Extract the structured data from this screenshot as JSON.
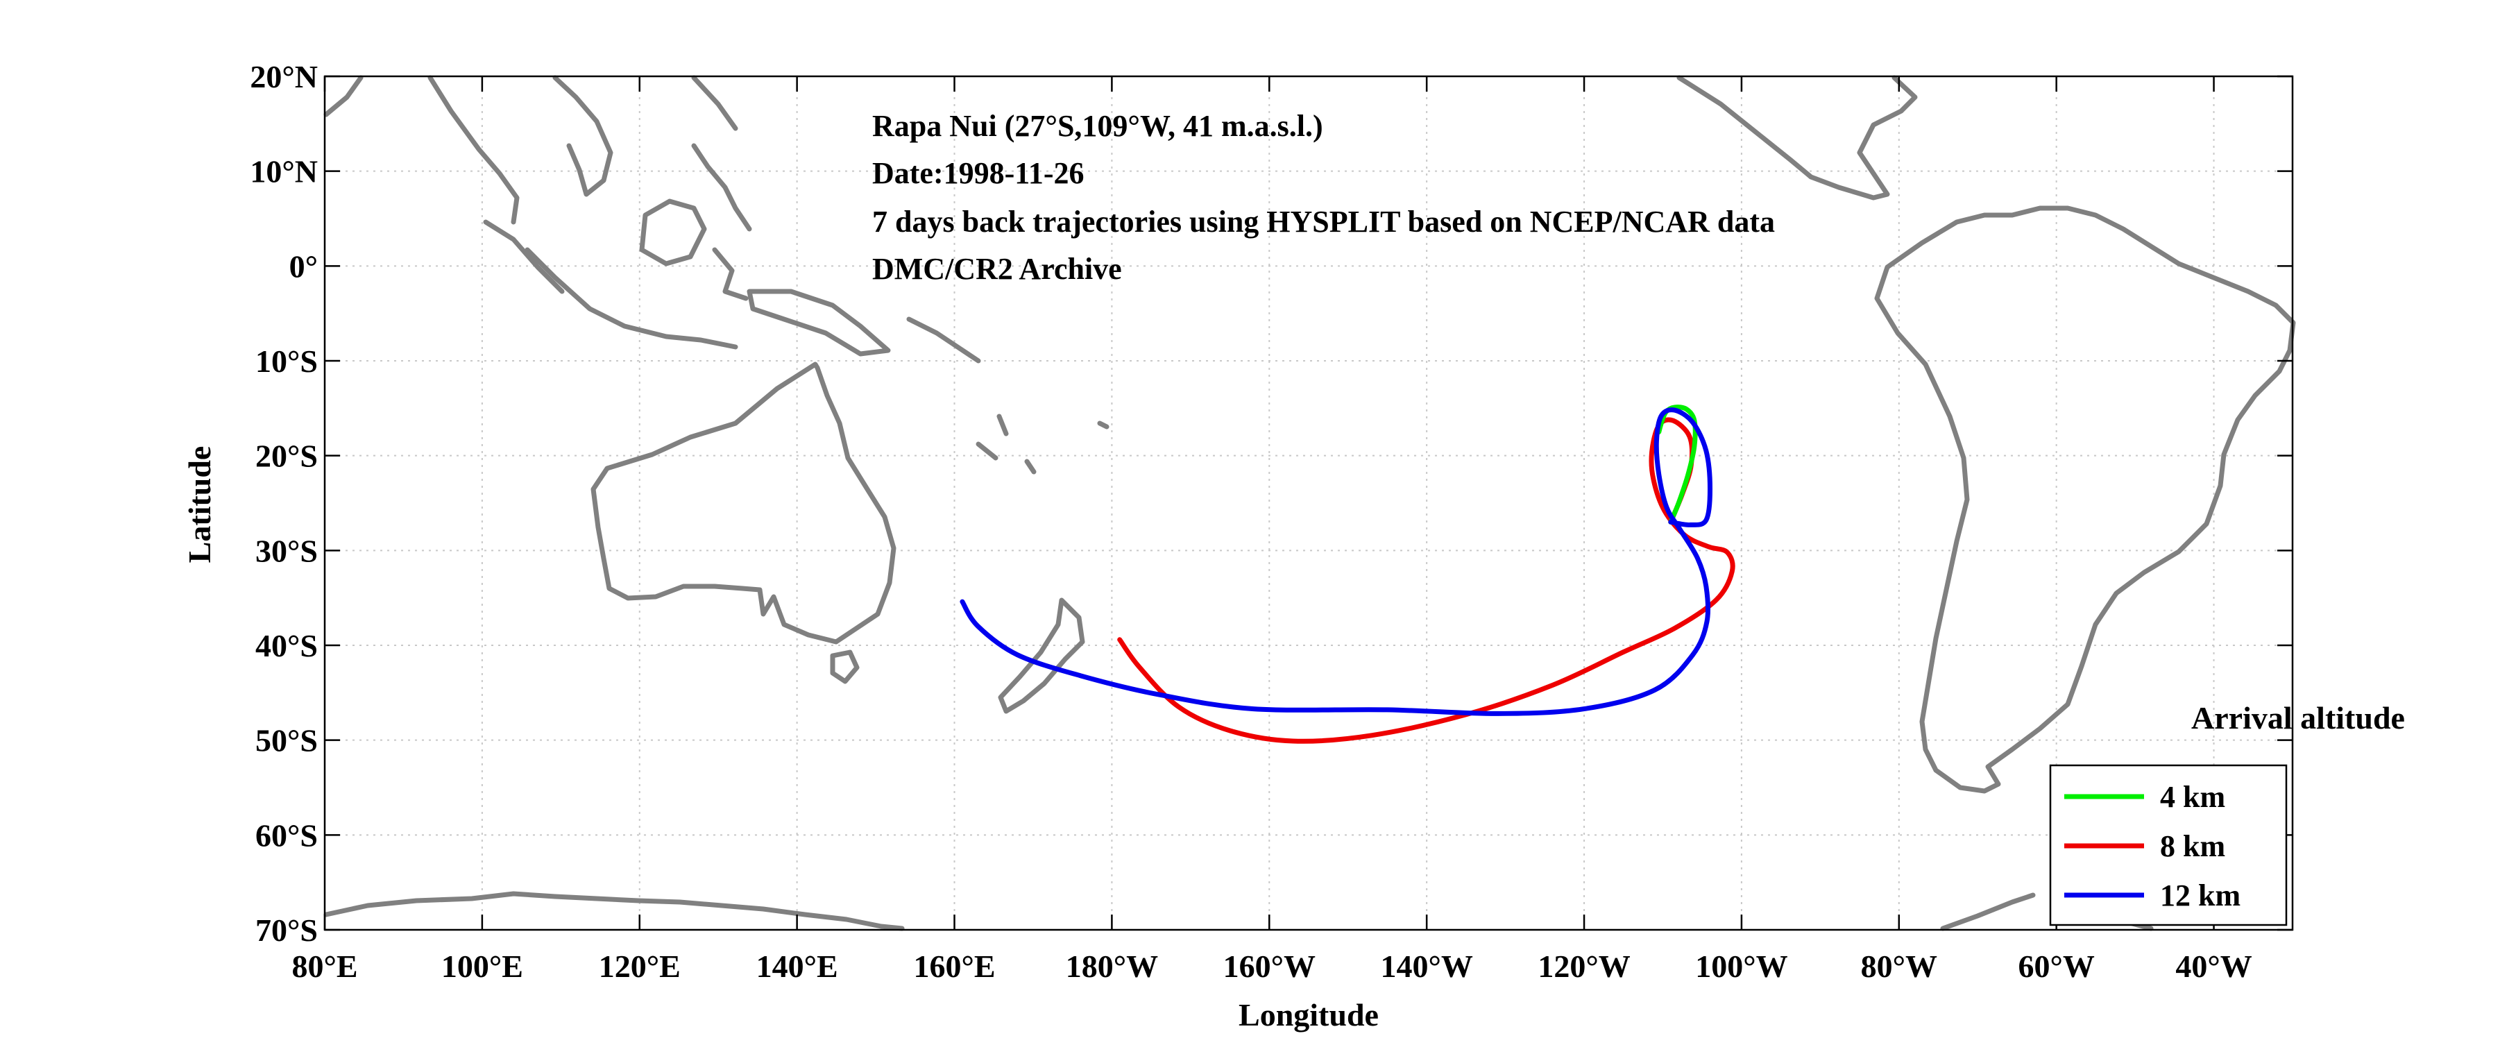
{
  "chart_data": {
    "type": "line",
    "title_lines": [
      "Rapa Nui (27°S,109°W, 41 m.a.s.l.)",
      "Date:1998-11-26",
      "7 days back trajectories using HYSPLIT based on NCEP/NCAR data",
      "DMC/CR2 Archive"
    ],
    "xlabel": "Longitude",
    "ylabel": "Latitude",
    "xlim": [
      80,
      330
    ],
    "ylim": [
      -70,
      20
    ],
    "grid": true,
    "x_ticks": [
      80,
      100,
      120,
      140,
      160,
      180,
      200,
      220,
      240,
      260,
      280,
      300,
      320
    ],
    "x_tick_labels": [
      "80°E",
      "100°E",
      "120°E",
      "140°E",
      "160°E",
      "180°W",
      "160°W",
      "140°W",
      "120°W",
      "100°W",
      "80°W",
      "60°W",
      "40°W"
    ],
    "y_ticks": [
      20,
      10,
      0,
      -10,
      -20,
      -30,
      -40,
      -50,
      -60,
      -70
    ],
    "y_tick_labels": [
      "20°N",
      "10°N",
      "0°",
      "10°S",
      "20°S",
      "30°S",
      "40°S",
      "50°S",
      "60°S",
      "70°S"
    ],
    "legend_title": "Arrival altitude",
    "legend_position": "bottom-right",
    "series": [
      {
        "name": "4 km",
        "color": "#00ee00",
        "points": [
          [
            251,
            -27
          ],
          [
            252,
            -25
          ],
          [
            253.2,
            -22
          ],
          [
            254,
            -19
          ],
          [
            254,
            -16.3
          ],
          [
            253,
            -15.1
          ],
          [
            251.5,
            -14.9
          ],
          [
            250.4,
            -15.4
          ],
          [
            249.8,
            -16.6
          ],
          [
            249.5,
            -17.5
          ]
        ]
      },
      {
        "name": "8 km",
        "color": "#ee0000",
        "points": [
          [
            251,
            -27
          ],
          [
            252.5,
            -24
          ],
          [
            253.6,
            -21
          ],
          [
            253.4,
            -18
          ],
          [
            251.3,
            -16.3
          ],
          [
            249.5,
            -16.8
          ],
          [
            248.6,
            -19.6
          ],
          [
            248.8,
            -22.5
          ],
          [
            250.2,
            -25.8
          ],
          [
            252.8,
            -28.4
          ],
          [
            255.8,
            -29.6
          ],
          [
            258.2,
            -30.2
          ],
          [
            258.8,
            -32.2
          ],
          [
            256.8,
            -35.2
          ],
          [
            251.5,
            -38.2
          ],
          [
            245,
            -40.7
          ],
          [
            236,
            -44.2
          ],
          [
            225,
            -47.3
          ],
          [
            213,
            -49.5
          ],
          [
            203,
            -50.1
          ],
          [
            195,
            -49
          ],
          [
            188.5,
            -46.5
          ],
          [
            183.5,
            -42.3
          ],
          [
            181,
            -39.4
          ]
        ]
      },
      {
        "name": "12 km",
        "color": "#0000ee",
        "points": [
          [
            251,
            -27
          ],
          [
            253.5,
            -27.3
          ],
          [
            255.5,
            -26.8
          ],
          [
            256,
            -23.5
          ],
          [
            255.5,
            -19.5
          ],
          [
            253.8,
            -16.5
          ],
          [
            251.5,
            -15.2
          ],
          [
            249.8,
            -15.8
          ],
          [
            249.2,
            -18.5
          ],
          [
            249.5,
            -22
          ],
          [
            250.5,
            -25.5
          ],
          [
            252.2,
            -27.8
          ],
          [
            254.4,
            -30.8
          ],
          [
            255.5,
            -33.8
          ],
          [
            255.6,
            -37.5
          ],
          [
            253.8,
            -41
          ],
          [
            249,
            -44.7
          ],
          [
            240,
            -46.7
          ],
          [
            229,
            -47.2
          ],
          [
            215,
            -46.8
          ],
          [
            198,
            -46.7
          ],
          [
            186,
            -45.2
          ],
          [
            176,
            -43.2
          ],
          [
            168,
            -41
          ],
          [
            163,
            -38
          ],
          [
            161,
            -35.4
          ]
        ]
      }
    ]
  }
}
